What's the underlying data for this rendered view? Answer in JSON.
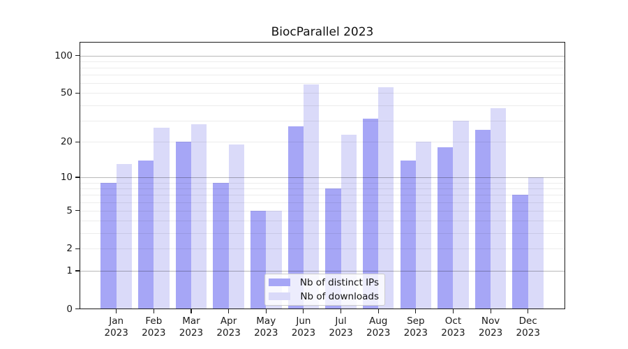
{
  "colors": {
    "series": [
      "#a6a6f6",
      "#dadaf9"
    ],
    "axis": "#1a1a1a",
    "background": "#ffffff"
  },
  "chart_data": {
    "type": "bar",
    "title": "BiocParallel 2023",
    "categories": [
      "Jan",
      "Feb",
      "Mar",
      "Apr",
      "May",
      "Jun",
      "Jul",
      "Aug",
      "Sep",
      "Oct",
      "Nov",
      "Dec"
    ],
    "year_label": "2023",
    "series": [
      {
        "name": "Nb of distinct IPs",
        "values": [
          9,
          14,
          20,
          9,
          5,
          27,
          8,
          31,
          14,
          18,
          25,
          7
        ]
      },
      {
        "name": "Nb of downloads",
        "values": [
          13,
          26,
          28,
          19,
          5,
          59,
          23,
          56,
          20,
          30,
          38,
          10
        ]
      }
    ],
    "yscale": "log10(value+1), zero at baseline",
    "yticks": [
      0,
      1,
      2,
      5,
      10,
      20,
      50,
      100
    ],
    "gridlines": {
      "major": [
        1,
        10,
        100
      ],
      "minor": [
        2,
        3,
        4,
        5,
        6,
        7,
        8,
        9,
        20,
        30,
        40,
        50,
        60,
        70,
        80,
        90
      ]
    },
    "ylim": [
      0,
      128
    ],
    "grid": true,
    "legend_position": "lower center"
  }
}
